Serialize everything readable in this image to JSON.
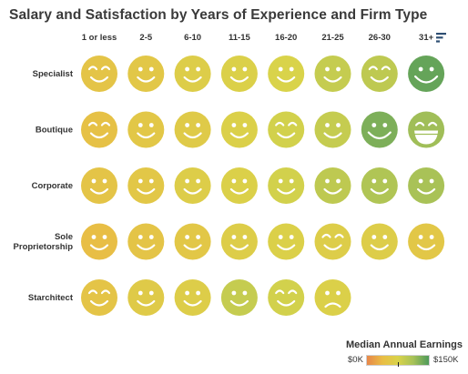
{
  "title": "Salary and Satisfaction by Years of Experience and Firm Type",
  "chart_data": {
    "type": "heatmap",
    "columns": [
      "1 or less",
      "2-5",
      "6-10",
      "11-15",
      "16-20",
      "21-25",
      "26-30",
      "31+"
    ],
    "rows": [
      {
        "label": [
          "Specialist"
        ],
        "cells": [
          {
            "expr": "squint",
            "earnings": 50
          },
          {
            "expr": "smile",
            "earnings": 55
          },
          {
            "expr": "smile",
            "earnings": 65
          },
          {
            "expr": "smile",
            "earnings": 70
          },
          {
            "expr": "smile",
            "earnings": 75
          },
          {
            "expr": "smile",
            "earnings": 90
          },
          {
            "expr": "squint",
            "earnings": 95
          },
          {
            "expr": "grin",
            "earnings": 140
          }
        ]
      },
      {
        "label": [
          "Boutique"
        ],
        "cells": [
          {
            "expr": "squint",
            "earnings": 45
          },
          {
            "expr": "smile",
            "earnings": 55
          },
          {
            "expr": "smile",
            "earnings": 60
          },
          {
            "expr": "smile",
            "earnings": 70
          },
          {
            "expr": "squint",
            "earnings": 80
          },
          {
            "expr": "smile",
            "earnings": 90
          },
          {
            "expr": "grin",
            "earnings": 130
          },
          {
            "expr": "laugh",
            "earnings": 115
          }
        ]
      },
      {
        "label": [
          "Corporate"
        ],
        "cells": [
          {
            "expr": "smile",
            "earnings": 50
          },
          {
            "expr": "smile",
            "earnings": 55
          },
          {
            "expr": "smile",
            "earnings": 65
          },
          {
            "expr": "smile",
            "earnings": 70
          },
          {
            "expr": "smile",
            "earnings": 80
          },
          {
            "expr": "smile",
            "earnings": 95
          },
          {
            "expr": "smile",
            "earnings": 105
          },
          {
            "expr": "smile",
            "earnings": 110
          }
        ]
      },
      {
        "label": [
          "Sole",
          "Proprietorship"
        ],
        "cells": [
          {
            "expr": "smile",
            "earnings": 40
          },
          {
            "expr": "smile",
            "earnings": 50
          },
          {
            "expr": "smile",
            "earnings": 55
          },
          {
            "expr": "smile",
            "earnings": 65
          },
          {
            "expr": "smile",
            "earnings": 70
          },
          {
            "expr": "squint",
            "earnings": 65
          },
          {
            "expr": "smile",
            "earnings": 65
          },
          {
            "expr": "smile",
            "earnings": 55
          }
        ]
      },
      {
        "label": [
          "Starchitect"
        ],
        "cells": [
          {
            "expr": "squint",
            "earnings": 50
          },
          {
            "expr": "smile",
            "earnings": 60
          },
          {
            "expr": "smile",
            "earnings": 65
          },
          {
            "expr": "smile",
            "earnings": 90
          },
          {
            "expr": "squint",
            "earnings": 80
          },
          {
            "expr": "frown",
            "earnings": 70
          },
          null,
          null
        ]
      }
    ],
    "color_scale": {
      "min": 0,
      "max": 150,
      "stops": [
        "#e8874a",
        "#e9bd45",
        "#d9d34a",
        "#a6c158",
        "#4e9a5a"
      ]
    },
    "legend": {
      "title": "Median Annual Earnings",
      "min_label": "$0K",
      "max_label": "$150K",
      "marker_value": 75,
      "placement": "bottom-right"
    },
    "face_colors": {
      "stroke": "#ffffff"
    }
  }
}
